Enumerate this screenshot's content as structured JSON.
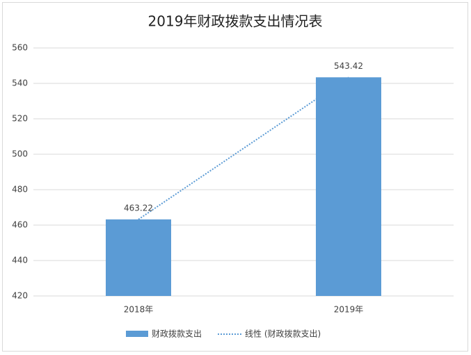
{
  "chart_data": {
    "type": "bar",
    "title": "2019年财政拨款支出情况表",
    "categories": [
      "2018年",
      "2019年"
    ],
    "series": [
      {
        "name": "财政拨款支出",
        "color": "#5b9bd5",
        "values": [
          463.22,
          543.42
        ]
      }
    ],
    "trendline": {
      "name": "线性 (财政拨款支出)",
      "color": "#5b9bd5",
      "kind": "linear"
    },
    "ylim": [
      420,
      560
    ],
    "yticks": [
      420,
      440,
      460,
      480,
      500,
      520,
      540,
      560
    ],
    "grid": true
  }
}
